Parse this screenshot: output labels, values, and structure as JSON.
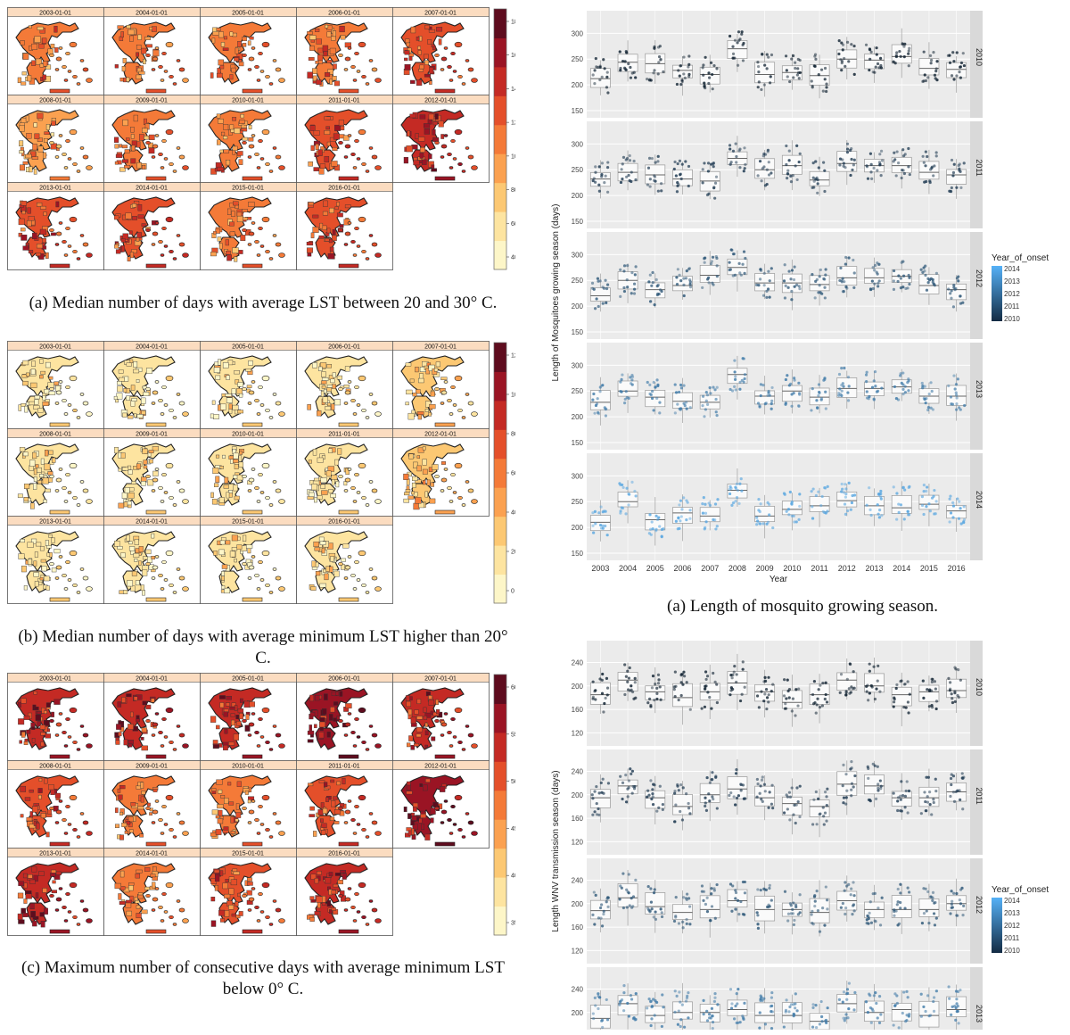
{
  "map_years": [
    "2003-01-01",
    "2004-01-01",
    "2005-01-01",
    "2006-01-01",
    "2007-01-01",
    "2008-01-01",
    "2009-01-01",
    "2010-01-01",
    "2011-01-01",
    "2012-01-01",
    "2013-01-01",
    "2014-01-01",
    "2015-01-01",
    "2016-01-01"
  ],
  "map_panels": [
    {
      "id": "a",
      "caption": "(a) Median number of days with average LST between 20 and 30° C.",
      "legend_ticks": [
        "180",
        "160",
        "140",
        "120",
        "100",
        "80",
        "60",
        "40"
      ],
      "colors": [
        "#fdf6c8",
        "#fde4a0",
        "#fcc873",
        "#fba150",
        "#f47a38",
        "#e44f2a",
        "#c42a24",
        "#9a1424",
        "#5e0c1e"
      ],
      "land_intensity": [
        0.55,
        0.55,
        0.5,
        0.55,
        0.6,
        0.35,
        0.5,
        0.45,
        0.6,
        0.7,
        0.65,
        0.6,
        0.5,
        0.6
      ]
    },
    {
      "id": "b",
      "caption": "(b) Median number of days with average minimum LST higher than 20° C.",
      "legend_ticks": [
        "120",
        "100",
        "80",
        "60",
        "40",
        "20",
        "0"
      ],
      "colors": [
        "#fdf6c8",
        "#fde4a0",
        "#fcc873",
        "#fba150",
        "#f47a38",
        "#e44f2a",
        "#c42a24",
        "#9a1424",
        "#5e0c1e"
      ],
      "land_intensity": [
        0.12,
        0.15,
        0.12,
        0.12,
        0.2,
        0.1,
        0.12,
        0.12,
        0.15,
        0.25,
        0.12,
        0.15,
        0.12,
        0.15
      ]
    },
    {
      "id": "c",
      "caption": "(c) Maximum number of consecutive days with average minimum LST below 0° C.",
      "legend_ticks": [
        "60",
        "55",
        "50",
        "45",
        "40",
        "35"
      ],
      "colors": [
        "#fdf6c8",
        "#fde4a0",
        "#fcc873",
        "#fba150",
        "#f47a38",
        "#e44f2a",
        "#c42a24",
        "#9a1424",
        "#5e0c1e"
      ],
      "land_intensity": [
        0.8,
        0.75,
        0.75,
        0.85,
        0.7,
        0.6,
        0.55,
        0.55,
        0.6,
        0.9,
        0.75,
        0.45,
        0.65,
        0.75
      ]
    }
  ],
  "box_panels": [
    {
      "id": "mosquito",
      "caption": "(a) Length of mosquito growing season.",
      "ylabel": "Length of Mosquitoes growing season (days)",
      "xlabel": "Year",
      "yticks": [
        150,
        200,
        250,
        300
      ],
      "ylim": [
        150,
        330
      ],
      "facets": [
        "2010",
        "2011",
        "2012",
        "2013",
        "2014"
      ],
      "x": [
        "2003",
        "2004",
        "2005",
        "2006",
        "2007",
        "2008",
        "2009",
        "2010",
        "2011",
        "2012",
        "2013",
        "2014",
        "2015",
        "2016"
      ],
      "legend_title": "Year_of_onset",
      "legend_labels": [
        "2014",
        "2013",
        "2012",
        "2011",
        "2010"
      ],
      "medians": {
        "2010": [
          212,
          244,
          241,
          228,
          220,
          270,
          220,
          224,
          218,
          250,
          248,
          255,
          232,
          230
        ],
        "2011": [
          232,
          245,
          240,
          232,
          228,
          272,
          250,
          258,
          230,
          262,
          258,
          258,
          245,
          240
        ],
        "2012": [
          220,
          250,
          232,
          240,
          260,
          275,
          245,
          245,
          242,
          255,
          255,
          258,
          240,
          232
        ],
        "2013": [
          228,
          250,
          238,
          230,
          228,
          282,
          240,
          250,
          238,
          255,
          255,
          258,
          240,
          240
        ],
        "2014": [
          210,
          250,
          215,
          228,
          222,
          272,
          222,
          235,
          242,
          252,
          242,
          238,
          245,
          232
        ]
      }
    },
    {
      "id": "wnv",
      "ylabel": "Length WNV transmission season (days)",
      "yticks": [
        120,
        160,
        200,
        240
      ],
      "ylim": [
        110,
        265
      ],
      "facets": [
        "2010",
        "2011",
        "2012",
        "2013"
      ],
      "x": [
        "2003",
        "2004",
        "2005",
        "2006",
        "2007",
        "2008",
        "2009",
        "2010",
        "2011",
        "2012",
        "2013",
        "2014",
        "2015",
        "2016"
      ],
      "legend_title": "Year_of_onset",
      "legend_labels": [
        "2014",
        "2013",
        "2012",
        "2011",
        "2010"
      ],
      "medians": {
        "2010": [
          185,
          210,
          190,
          180,
          190,
          205,
          190,
          172,
          185,
          210,
          200,
          185,
          190,
          192
        ],
        "2011": [
          195,
          215,
          195,
          180,
          200,
          210,
          195,
          185,
          180,
          218,
          215,
          195,
          195,
          205
        ],
        "2012": [
          188,
          210,
          195,
          185,
          190,
          205,
          190,
          190,
          185,
          205,
          190,
          190,
          190,
          200
        ],
        "2013": [
          190,
          215,
          195,
          200,
          200,
          205,
          195,
          195,
          185,
          215,
          200,
          205,
          195,
          205
        ]
      }
    }
  ]
}
